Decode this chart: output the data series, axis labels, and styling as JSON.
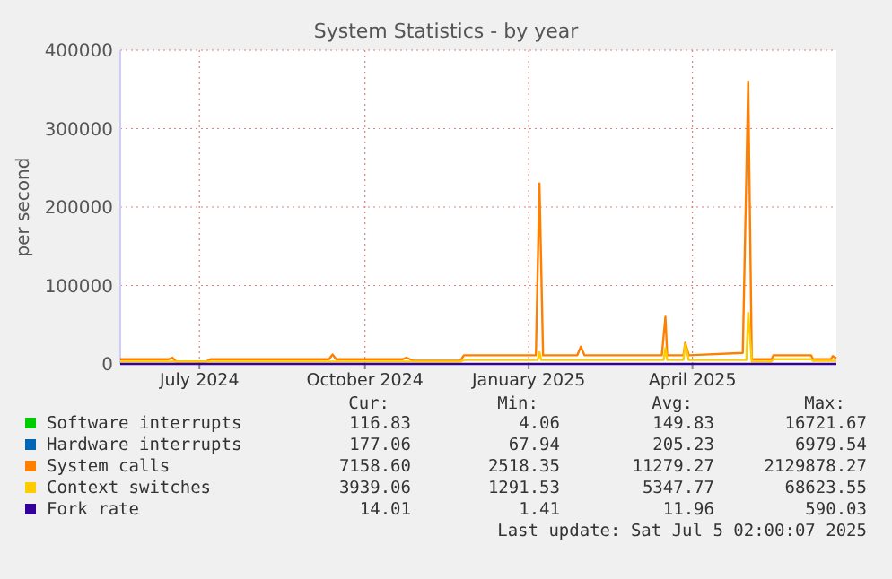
{
  "chart_data": {
    "type": "line",
    "title": "System Statistics - by year",
    "ylabel": "per second",
    "xlim": [
      "2024-06-02",
      "2025-07-05"
    ],
    "ylim": [
      0,
      400000
    ],
    "yticks": [
      0,
      100000,
      200000,
      300000,
      400000
    ],
    "xticks": [
      {
        "value": "2024-07-16",
        "label": "July 2024"
      },
      {
        "value": "2024-10-16",
        "label": "October 2024"
      },
      {
        "value": "2025-01-15",
        "label": "January 2025"
      },
      {
        "value": "2025-04-16",
        "label": "April 2025"
      }
    ],
    "grid": true,
    "legend": "bottom",
    "marker": "none",
    "line_style": "solid",
    "series": [
      {
        "name": "Software interrupts",
        "color": "#00cc00"
      },
      {
        "name": "Hardware interrupts",
        "color": "#0066b3"
      },
      {
        "name": "System calls",
        "color": "#ff8000",
        "x": [
          "2024-06-02",
          "2024-06-29",
          "2024-07-01",
          "2024-07-03",
          "2024-07-20",
          "2024-07-22",
          "2024-09-26",
          "2024-09-28",
          "2024-09-30",
          "2024-11-06",
          "2024-11-08",
          "2024-11-12",
          "2024-12-08",
          "2024-12-10",
          "2025-01-19",
          "2025-01-21",
          "2025-01-23",
          "2025-02-11",
          "2025-02-13",
          "2025-02-15",
          "2025-03-30",
          "2025-04-01",
          "2025-04-02",
          "2025-04-11",
          "2025-04-12",
          "2025-04-14",
          "2025-05-14",
          "2025-05-17",
          "2025-05-19",
          "2025-05-30",
          "2025-05-31",
          "2025-06-21",
          "2025-06-22",
          "2025-07-02",
          "2025-07-03",
          "2025-07-05"
        ],
        "values": [
          6000,
          6000,
          8000,
          3000,
          3000,
          6000,
          6000,
          12000,
          6000,
          6000,
          8000,
          4000,
          4000,
          11000,
          11000,
          230000,
          11000,
          11000,
          22000,
          11000,
          11000,
          60000,
          11000,
          11000,
          27000,
          11000,
          14000,
          360000,
          6000,
          6000,
          11000,
          11000,
          6000,
          6000,
          10000,
          7000
        ]
      },
      {
        "name": "Context switches",
        "color": "#ffcc00",
        "x": [
          "2024-06-02",
          "2024-12-08",
          "2024-12-10",
          "2025-01-20",
          "2025-01-21",
          "2025-01-22",
          "2025-03-31",
          "2025-04-01",
          "2025-04-02",
          "2025-04-11",
          "2025-04-12",
          "2025-04-14",
          "2025-05-16",
          "2025-05-17",
          "2025-05-19",
          "2025-05-30",
          "2025-05-31",
          "2025-06-21",
          "2025-06-22",
          "2025-07-05"
        ],
        "values": [
          3000,
          3000,
          5000,
          5000,
          15000,
          5000,
          5000,
          20000,
          5000,
          5000,
          25000,
          5000,
          5000,
          65000,
          3000,
          3000,
          6000,
          6000,
          4000,
          4000
        ]
      },
      {
        "name": "Fork rate",
        "color": "#330099",
        "x": [
          "2024-06-02",
          "2025-07-05"
        ],
        "values": [
          0,
          0
        ]
      }
    ],
    "annotations": [
      "Cur:",
      "Min:",
      "Avg:",
      "Max:",
      "116.83",
      "4.06",
      "149.83",
      "16721.67",
      "177.06",
      "67.94",
      "205.23",
      "6979.54",
      "7158.60",
      "2518.35",
      "11279.27",
      "2129878.27",
      "3939.06",
      "1291.53",
      "5347.77",
      "68623.55",
      "14.01",
      "1.41",
      "11.96",
      "590.03",
      "Last update:  Sat Jul  5 02:00:07 2025"
    ]
  }
}
